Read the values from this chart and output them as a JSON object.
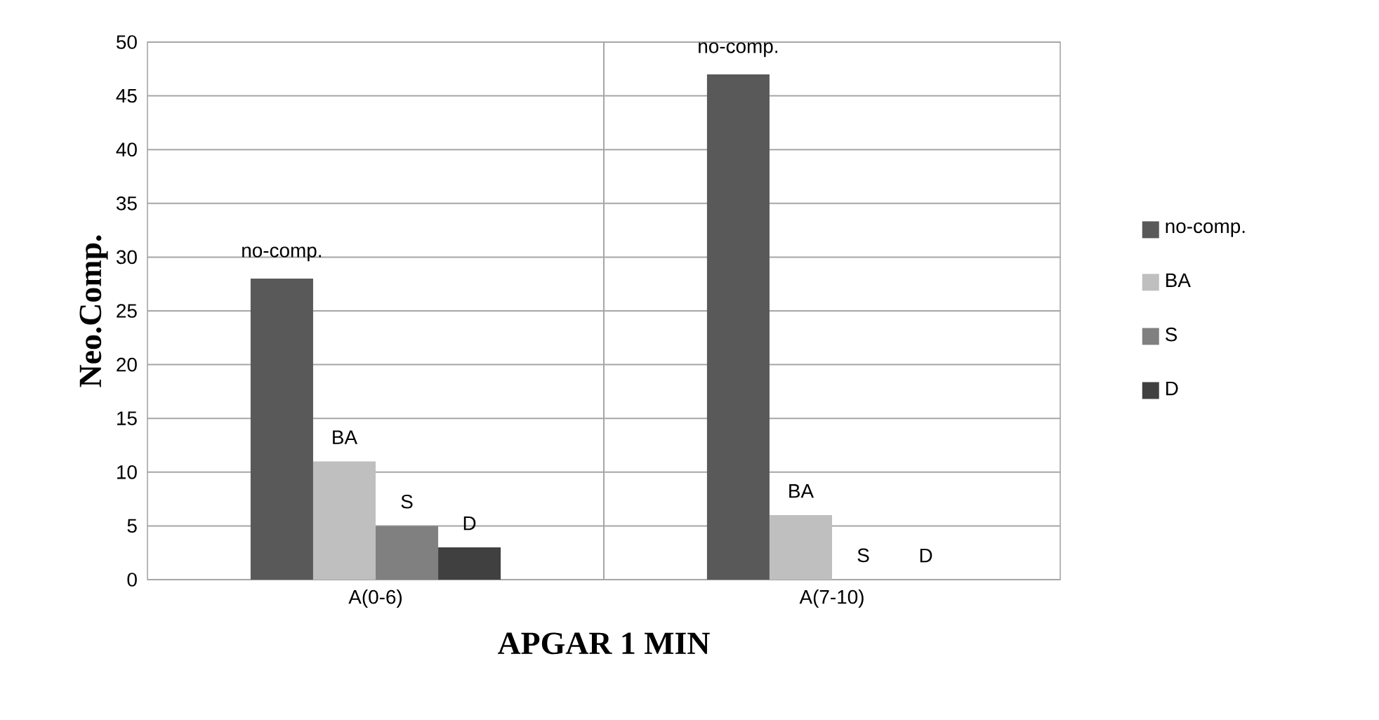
{
  "chart_data": {
    "type": "bar",
    "xlabel": "APGAR 1 MIN",
    "ylabel": "Neo.Comp.",
    "categories": [
      "A(0-6)",
      "A(7-10)"
    ],
    "series": [
      {
        "name": "no-comp.",
        "color": "#595959",
        "values": [
          28,
          47
        ]
      },
      {
        "name": "BA",
        "color": "#bfbfbf",
        "values": [
          11,
          6
        ]
      },
      {
        "name": "S",
        "color": "#808080",
        "values": [
          5,
          0
        ]
      },
      {
        "name": "D",
        "color": "#404040",
        "values": [
          3,
          0
        ]
      }
    ],
    "ylim": [
      0,
      50
    ],
    "yticks": [
      0,
      5,
      10,
      15,
      20,
      25,
      30,
      35,
      40,
      45,
      50
    ],
    "grid": true,
    "legend": "right",
    "annotations": [
      "no-comp.",
      "BA",
      "S",
      "D",
      "no-comp.",
      "BA",
      "S",
      "D"
    ]
  }
}
